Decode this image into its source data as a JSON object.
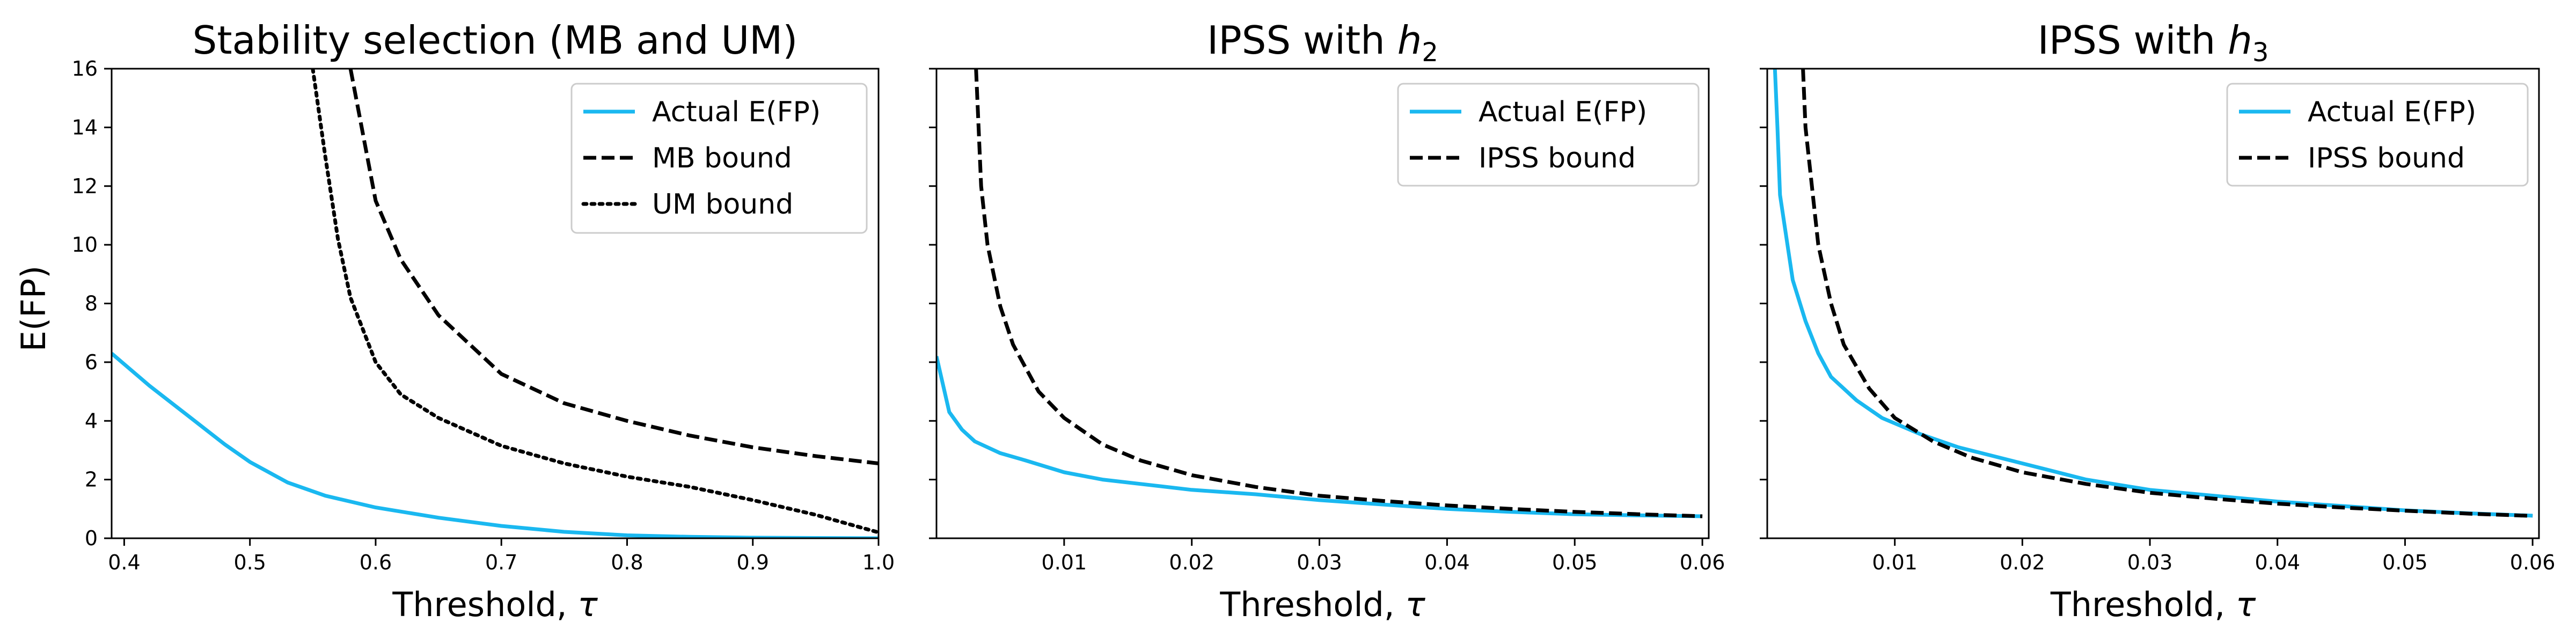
{
  "figure": {
    "ylabel": "E(FP)"
  },
  "chart_data": [
    {
      "type": "line",
      "title": "Stability selection (MB and UM)",
      "xlabel": "Threshold, τ",
      "ylabel": "E(FP)",
      "xlim": [
        0.39,
        1.0
      ],
      "ylim": [
        0,
        16
      ],
      "xticks": [
        "0.4",
        "0.5",
        "0.6",
        "0.7",
        "0.8",
        "0.9",
        "1.0"
      ],
      "yticks": [
        "0",
        "2",
        "4",
        "6",
        "8",
        "10",
        "12",
        "14",
        "16"
      ],
      "legend_position": "top-right",
      "series": [
        {
          "name": "Actual E(FP)",
          "style": "solid",
          "color": "#1ab8f0",
          "points": [
            [
              0.39,
              6.3
            ],
            [
              0.42,
              5.2
            ],
            [
              0.45,
              4.2
            ],
            [
              0.48,
              3.2
            ],
            [
              0.5,
              2.6
            ],
            [
              0.53,
              1.9
            ],
            [
              0.56,
              1.45
            ],
            [
              0.6,
              1.05
            ],
            [
              0.65,
              0.7
            ],
            [
              0.7,
              0.42
            ],
            [
              0.75,
              0.22
            ],
            [
              0.8,
              0.1
            ],
            [
              0.85,
              0.05
            ],
            [
              0.9,
              0.02
            ],
            [
              0.95,
              0.01
            ],
            [
              1.0,
              0.0
            ]
          ]
        },
        {
          "name": "MB bound",
          "style": "dashed",
          "color": "#000000",
          "points": [
            [
              0.58,
              16.0
            ],
            [
              0.6,
              11.5
            ],
            [
              0.62,
              9.5
            ],
            [
              0.65,
              7.6
            ],
            [
              0.7,
              5.6
            ],
            [
              0.75,
              4.6
            ],
            [
              0.8,
              4.0
            ],
            [
              0.85,
              3.5
            ],
            [
              0.9,
              3.1
            ],
            [
              0.95,
              2.8
            ],
            [
              1.0,
              2.55
            ]
          ]
        },
        {
          "name": "UM bound",
          "style": "dotted",
          "color": "#000000",
          "points": [
            [
              0.55,
              16.0
            ],
            [
              0.56,
              13.0
            ],
            [
              0.57,
              10.2
            ],
            [
              0.58,
              8.2
            ],
            [
              0.6,
              6.0
            ],
            [
              0.62,
              4.9
            ],
            [
              0.65,
              4.1
            ],
            [
              0.7,
              3.15
            ],
            [
              0.75,
              2.55
            ],
            [
              0.8,
              2.1
            ],
            [
              0.85,
              1.75
            ],
            [
              0.9,
              1.3
            ],
            [
              0.95,
              0.8
            ],
            [
              1.0,
              0.2
            ]
          ]
        }
      ]
    },
    {
      "type": "line",
      "title": "IPSS with h₂",
      "title_parts": [
        "IPSS with ",
        "h",
        "2"
      ],
      "xlabel": "Threshold, τ",
      "xlim": [
        0.0,
        0.0605
      ],
      "ylim": [
        0,
        16
      ],
      "xticks": [
        "0.01",
        "0.02",
        "0.03",
        "0.04",
        "0.05",
        "0.06"
      ],
      "legend_position": "top-right",
      "series": [
        {
          "name": "Actual E(FP)",
          "style": "solid",
          "color": "#1ab8f0",
          "points": [
            [
              0.0,
              6.2
            ],
            [
              0.001,
              4.3
            ],
            [
              0.002,
              3.7
            ],
            [
              0.003,
              3.3
            ],
            [
              0.005,
              2.9
            ],
            [
              0.007,
              2.65
            ],
            [
              0.01,
              2.25
            ],
            [
              0.013,
              2.0
            ],
            [
              0.016,
              1.85
            ],
            [
              0.02,
              1.65
            ],
            [
              0.025,
              1.5
            ],
            [
              0.03,
              1.3
            ],
            [
              0.035,
              1.15
            ],
            [
              0.04,
              1.0
            ],
            [
              0.045,
              0.9
            ],
            [
              0.05,
              0.82
            ],
            [
              0.055,
              0.78
            ],
            [
              0.06,
              0.75
            ]
          ]
        },
        {
          "name": "IPSS bound",
          "style": "dashed",
          "color": "#000000",
          "points": [
            [
              0.0031,
              16.0
            ],
            [
              0.0035,
              12.0
            ],
            [
              0.004,
              10.0
            ],
            [
              0.005,
              7.9
            ],
            [
              0.006,
              6.6
            ],
            [
              0.008,
              5.0
            ],
            [
              0.01,
              4.1
            ],
            [
              0.013,
              3.2
            ],
            [
              0.016,
              2.65
            ],
            [
              0.02,
              2.15
            ],
            [
              0.025,
              1.75
            ],
            [
              0.03,
              1.45
            ],
            [
              0.035,
              1.27
            ],
            [
              0.04,
              1.12
            ],
            [
              0.045,
              1.0
            ],
            [
              0.05,
              0.9
            ],
            [
              0.055,
              0.82
            ],
            [
              0.06,
              0.75
            ]
          ]
        }
      ]
    },
    {
      "type": "line",
      "title": "IPSS with h₃",
      "title_parts": [
        "IPSS with ",
        "h",
        "3"
      ],
      "xlabel": "Threshold, τ",
      "xlim": [
        0.0,
        0.0605
      ],
      "ylim": [
        0,
        16
      ],
      "xticks": [
        "0.01",
        "0.02",
        "0.03",
        "0.04",
        "0.05",
        "0.06"
      ],
      "legend_position": "top-right",
      "series": [
        {
          "name": "Actual E(FP)",
          "style": "solid",
          "color": "#1ab8f0",
          "points": [
            [
              0.0006,
              16.0
            ],
            [
              0.0008,
              14.0
            ],
            [
              0.001,
              11.7
            ],
            [
              0.002,
              8.8
            ],
            [
              0.003,
              7.4
            ],
            [
              0.004,
              6.3
            ],
            [
              0.005,
              5.5
            ],
            [
              0.007,
              4.7
            ],
            [
              0.009,
              4.1
            ],
            [
              0.012,
              3.55
            ],
            [
              0.015,
              3.1
            ],
            [
              0.02,
              2.55
            ],
            [
              0.025,
              2.0
            ],
            [
              0.03,
              1.65
            ],
            [
              0.035,
              1.45
            ],
            [
              0.04,
              1.25
            ],
            [
              0.045,
              1.1
            ],
            [
              0.05,
              0.95
            ],
            [
              0.055,
              0.85
            ],
            [
              0.06,
              0.77
            ]
          ]
        },
        {
          "name": "IPSS bound",
          "style": "dashed",
          "color": "#000000",
          "points": [
            [
              0.0028,
              16.0
            ],
            [
              0.003,
              14.0
            ],
            [
              0.0035,
              12.0
            ],
            [
              0.004,
              10.0
            ],
            [
              0.005,
              8.0
            ],
            [
              0.006,
              6.6
            ],
            [
              0.008,
              5.1
            ],
            [
              0.01,
              4.1
            ],
            [
              0.013,
              3.3
            ],
            [
              0.016,
              2.75
            ],
            [
              0.02,
              2.25
            ],
            [
              0.025,
              1.85
            ],
            [
              0.03,
              1.55
            ],
            [
              0.035,
              1.35
            ],
            [
              0.04,
              1.18
            ],
            [
              0.045,
              1.05
            ],
            [
              0.05,
              0.94
            ],
            [
              0.055,
              0.84
            ],
            [
              0.06,
              0.76
            ]
          ]
        }
      ]
    }
  ]
}
